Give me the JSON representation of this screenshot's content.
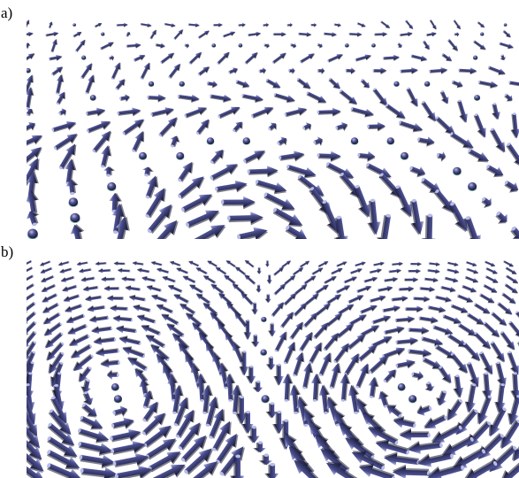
{
  "figure": {
    "panels": [
      {
        "label": "a)",
        "content": "skyrmion-lattice-spin-texture-3d-arrows"
      },
      {
        "label": "b)",
        "content": "vortex-pair-spin-texture-3d-arrows"
      }
    ],
    "colors": {
      "arrow_body": "#4b4f90",
      "arrow_highlight": "#b8bce6",
      "arrow_shadow": "#15162e",
      "cone_rim": "#6fae9a",
      "background": "#ffffff",
      "label_text": "#000000"
    }
  }
}
